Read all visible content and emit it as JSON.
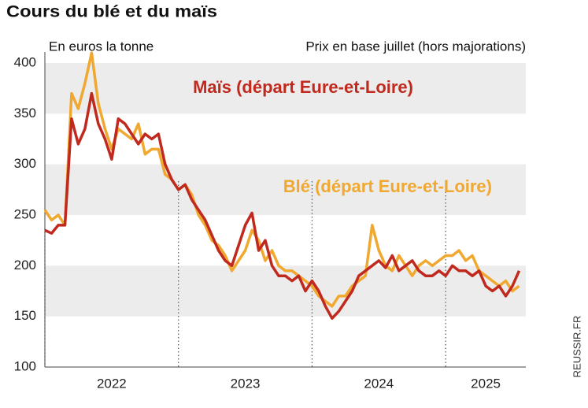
{
  "chart_data": {
    "type": "line",
    "title": "Cours du blé et du maïs",
    "y_label": "En euros la tonne",
    "subtitle": "Prix en base juillet (hors majorations)",
    "source": "REUSSIR.FR",
    "x": [
      2022.0,
      2022.05,
      2022.1,
      2022.15,
      2022.2,
      2022.25,
      2022.3,
      2022.35,
      2022.4,
      2022.45,
      2022.5,
      2022.55,
      2022.6,
      2022.65,
      2022.7,
      2022.75,
      2022.8,
      2022.85,
      2022.9,
      2022.95,
      2023.0,
      2023.05,
      2023.1,
      2023.15,
      2023.2,
      2023.25,
      2023.3,
      2023.35,
      2023.4,
      2023.45,
      2023.5,
      2023.55,
      2023.6,
      2023.65,
      2023.7,
      2023.75,
      2023.8,
      2023.85,
      2023.9,
      2023.95,
      2024.0,
      2024.05,
      2024.1,
      2024.15,
      2024.2,
      2024.25,
      2024.3,
      2024.35,
      2024.4,
      2024.45,
      2024.5,
      2024.55,
      2024.6,
      2024.65,
      2024.7,
      2024.75,
      2024.8,
      2024.85,
      2024.9,
      2024.95,
      2025.0,
      2025.05,
      2025.1,
      2025.15,
      2025.2,
      2025.25,
      2025.3,
      2025.35,
      2025.4,
      2025.45,
      2025.5,
      2025.55
    ],
    "series": [
      {
        "name": "Blé (départ Eure-et-Loire)",
        "color": "#f0a830",
        "values": [
          255,
          245,
          250,
          240,
          370,
          355,
          380,
          410,
          360,
          335,
          315,
          335,
          330,
          325,
          340,
          310,
          315,
          315,
          290,
          285,
          275,
          280,
          270,
          250,
          240,
          225,
          220,
          210,
          195,
          205,
          215,
          235,
          225,
          205,
          215,
          200,
          195,
          195,
          190,
          185,
          180,
          170,
          165,
          160,
          170,
          170,
          180,
          185,
          190,
          240,
          215,
          200,
          195,
          210,
          200,
          190,
          200,
          205,
          200,
          205,
          210,
          210,
          215,
          205,
          210,
          195,
          190,
          185,
          180,
          185,
          175,
          180
        ]
      },
      {
        "name": "Maïs (départ Eure-et-Loire)",
        "color": "#c0291e",
        "values": [
          235,
          232,
          240,
          240,
          345,
          320,
          335,
          370,
          340,
          325,
          305,
          345,
          340,
          330,
          320,
          330,
          325,
          330,
          300,
          285,
          275,
          280,
          265,
          255,
          245,
          230,
          215,
          205,
          200,
          220,
          240,
          252,
          215,
          225,
          200,
          190,
          190,
          185,
          190,
          175,
          185,
          175,
          160,
          148,
          155,
          165,
          175,
          190,
          195,
          200,
          205,
          198,
          210,
          195,
          200,
          205,
          195,
          190,
          190,
          195,
          190,
          200,
          195,
          195,
          190,
          195,
          180,
          175,
          180,
          170,
          180,
          195
        ]
      }
    ],
    "xlim": [
      2022.0,
      2025.6
    ],
    "xticks": [
      {
        "value": 2022.5,
        "label": "2022"
      },
      {
        "value": 2023.5,
        "label": "2023"
      },
      {
        "value": 2024.5,
        "label": "2024"
      },
      {
        "value": 2025.3,
        "label": "2025"
      }
    ],
    "xgrid": [
      2022,
      2023,
      2024,
      2025
    ],
    "ylim": [
      100,
      400
    ],
    "yticks": [
      100,
      150,
      200,
      250,
      300,
      350,
      400
    ],
    "grid": "bands"
  }
}
